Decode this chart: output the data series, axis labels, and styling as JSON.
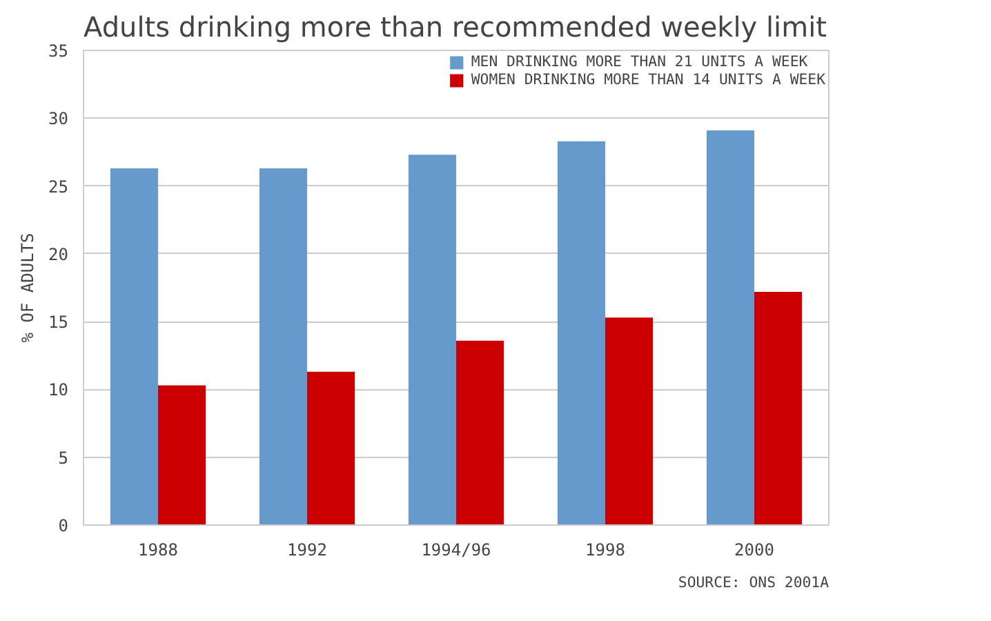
{
  "chart_data": {
    "type": "bar",
    "title": "Adults drinking more than recommended weekly limit",
    "ylabel": "% OF ADULTS",
    "categories": [
      "1988",
      "1992",
      "1994/96",
      "1998",
      "2000"
    ],
    "series": [
      {
        "name": "MEN DRINKING MORE THAN 21 UNITS A WEEK",
        "color": "#6699cc",
        "values": [
          26.3,
          26.3,
          27.3,
          28.3,
          29.1
        ]
      },
      {
        "name": "WOMEN DRINKING MORE THAN 14 UNITS A WEEK",
        "color": "#cc0000",
        "values": [
          10.3,
          11.3,
          13.6,
          15.3,
          17.2
        ]
      }
    ],
    "ylim": [
      0,
      35
    ],
    "yticks": [
      0,
      5,
      10,
      15,
      20,
      25,
      30,
      35
    ],
    "grid": "y",
    "legend": "top right",
    "annotations": [
      "SOURCE: ONS 2001A"
    ]
  }
}
